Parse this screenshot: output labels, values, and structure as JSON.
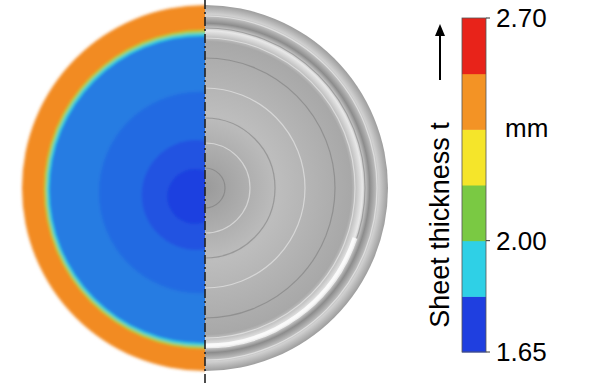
{
  "chart_data": {
    "type": "radial_map",
    "rings": {
      "radii": [
        1.0,
        0.87,
        0.855,
        0.84,
        0.55,
        0.3,
        0.15,
        0.07
      ],
      "values": [
        2.45,
        2.15,
        1.92,
        1.81,
        1.79,
        1.76,
        1.72,
        1.69
      ]
    },
    "color_bar": {
      "label": "Sheet thickness t",
      "unit": "mm",
      "range": [
        1.65,
        2.7
      ],
      "ticks": [
        {
          "value": 2.7,
          "label": "2.70"
        },
        {
          "value": 2.0,
          "label": "2.00"
        },
        1.65
      ],
      "colors": [
        "#1f3fe0",
        "#2fd0e6",
        "#7ac943",
        "#f5e52a",
        "#f39325",
        "#e8231a"
      ]
    }
  }
}
